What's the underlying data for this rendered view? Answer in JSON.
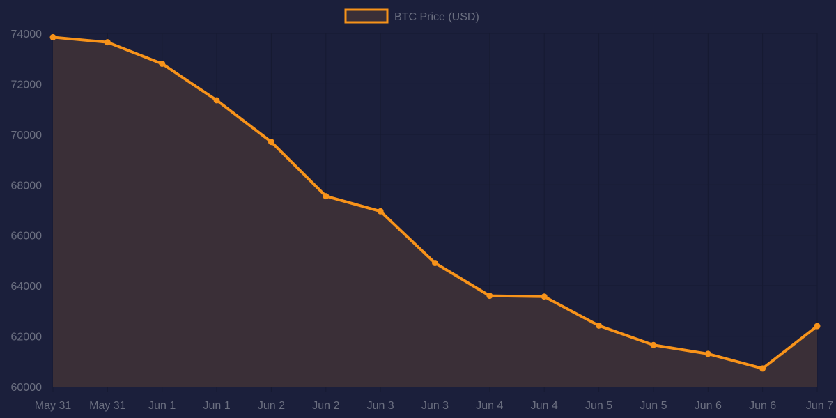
{
  "chart_data": {
    "type": "area",
    "title": "",
    "xlabel": "",
    "ylabel": "",
    "legend": {
      "position": "top-center"
    },
    "categories": [
      "May 31",
      "May 31",
      "Jun 1",
      "Jun 1",
      "Jun 2",
      "Jun 2",
      "Jun 3",
      "Jun 3",
      "Jun 4",
      "Jun 4",
      "Jun 5",
      "Jun 5",
      "Jun 6",
      "Jun 6",
      "Jun 7"
    ],
    "series": [
      {
        "name": "BTC Price (USD)",
        "values": [
          73850,
          73650,
          72800,
          71350,
          69700,
          67550,
          66950,
          64900,
          63600,
          63570,
          62420,
          61650,
          61300,
          60720,
          62400
        ]
      }
    ],
    "ylim": [
      60000,
      74000
    ],
    "yticks": [
      "60000",
      "62000",
      "64000",
      "66000",
      "68000",
      "70000",
      "72000",
      "74000"
    ],
    "grid": true,
    "colors": {
      "background": "#1b1f3b",
      "line": "#f7931a",
      "area_fill": "#3a2f37",
      "grid": "#161a31",
      "text": "#6b6f80"
    }
  }
}
